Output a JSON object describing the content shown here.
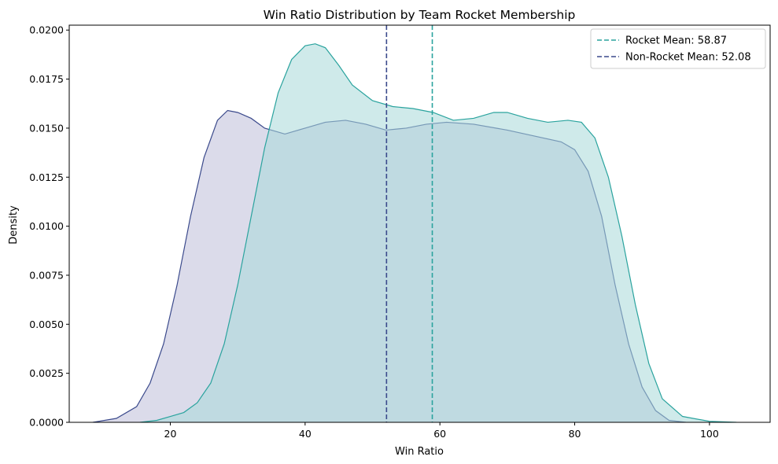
{
  "chart_data": {
    "type": "area",
    "title": "Win Ratio Distribution by Team Rocket Membership",
    "xlabel": "Win Ratio",
    "ylabel": "Density",
    "xlim": [
      5,
      109
    ],
    "ylim": [
      0,
      0.02025
    ],
    "x_ticks": [
      20,
      40,
      60,
      80,
      100
    ],
    "y_ticks": [
      0.0,
      0.0025,
      0.005,
      0.0075,
      0.01,
      0.0125,
      0.015,
      0.0175,
      0.02
    ],
    "x_tick_labels": [
      "20",
      "40",
      "60",
      "80",
      "100"
    ],
    "y_tick_labels": [
      "0.0000",
      "0.0025",
      "0.0050",
      "0.0075",
      "0.0100",
      "0.0125",
      "0.0150",
      "0.0175",
      "0.0200"
    ],
    "grid": false,
    "legend_position": "top-right",
    "series": [
      {
        "key": "non_rocket",
        "color": "#3b4a8c",
        "fill": "#bdbdd9",
        "points": [
          [
            8.5,
            0
          ],
          [
            12,
            0.0002
          ],
          [
            15,
            0.0008
          ],
          [
            17,
            0.002
          ],
          [
            19,
            0.004
          ],
          [
            21,
            0.007
          ],
          [
            23,
            0.0105
          ],
          [
            25,
            0.0135
          ],
          [
            27,
            0.0154
          ],
          [
            28.5,
            0.0159
          ],
          [
            30,
            0.0158
          ],
          [
            32,
            0.0155
          ],
          [
            34,
            0.015
          ],
          [
            37,
            0.0147
          ],
          [
            40,
            0.015
          ],
          [
            43,
            0.0153
          ],
          [
            46,
            0.0154
          ],
          [
            49,
            0.0152
          ],
          [
            52,
            0.0149
          ],
          [
            55,
            0.015
          ],
          [
            58,
            0.0152
          ],
          [
            61,
            0.0153
          ],
          [
            65,
            0.0152
          ],
          [
            70,
            0.0149
          ],
          [
            74,
            0.0146
          ],
          [
            78,
            0.0143
          ],
          [
            80,
            0.0139
          ],
          [
            82,
            0.0128
          ],
          [
            84,
            0.0105
          ],
          [
            86,
            0.007
          ],
          [
            88,
            0.004
          ],
          [
            90,
            0.0018
          ],
          [
            92,
            0.0006
          ],
          [
            94,
            0.0001
          ],
          [
            96.5,
            0
          ]
        ]
      },
      {
        "key": "rocket",
        "color": "#2aa39e",
        "fill": "#a8d8d9",
        "points": [
          [
            15.5,
            0
          ],
          [
            18,
            0.0001
          ],
          [
            20,
            0.0003
          ],
          [
            22,
            0.0005
          ],
          [
            24,
            0.001
          ],
          [
            26,
            0.002
          ],
          [
            28,
            0.004
          ],
          [
            30,
            0.007
          ],
          [
            32,
            0.0105
          ],
          [
            34,
            0.014
          ],
          [
            36,
            0.0168
          ],
          [
            38,
            0.0185
          ],
          [
            40,
            0.0192
          ],
          [
            41.5,
            0.0193
          ],
          [
            43,
            0.0191
          ],
          [
            45,
            0.0182
          ],
          [
            47,
            0.0172
          ],
          [
            50,
            0.0164
          ],
          [
            53,
            0.0161
          ],
          [
            56,
            0.016
          ],
          [
            59,
            0.0158
          ],
          [
            62,
            0.0154
          ],
          [
            65,
            0.0155
          ],
          [
            68,
            0.0158
          ],
          [
            70,
            0.0158
          ],
          [
            73,
            0.0155
          ],
          [
            76,
            0.0153
          ],
          [
            79,
            0.0154
          ],
          [
            81,
            0.0153
          ],
          [
            83,
            0.0145
          ],
          [
            85,
            0.0125
          ],
          [
            87,
            0.0095
          ],
          [
            89,
            0.006
          ],
          [
            91,
            0.003
          ],
          [
            93,
            0.0012
          ],
          [
            96,
            0.0003
          ],
          [
            100,
            5e-05
          ],
          [
            104,
            0
          ]
        ]
      }
    ],
    "mean_lines": [
      {
        "key": "rocket",
        "x": 58.87,
        "color": "#2aa39e"
      },
      {
        "key": "non_rocket",
        "x": 52.08,
        "color": "#3b4a8c"
      }
    ],
    "legend": [
      {
        "key": "rocket",
        "label": "Rocket Mean: 58.87",
        "color": "#2aa39e"
      },
      {
        "key": "non_rocket",
        "label": "Non-Rocket Mean: 52.08",
        "color": "#3b4a8c"
      }
    ]
  }
}
